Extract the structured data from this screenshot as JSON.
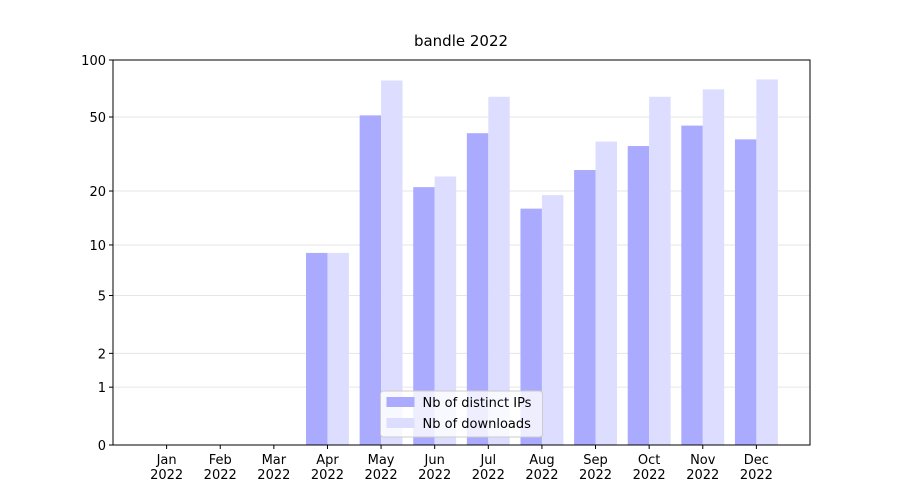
{
  "chart_data": {
    "type": "bar",
    "title": "bandle 2022",
    "scale": "log1p",
    "categories": [
      "Jan\n2022",
      "Feb\n2022",
      "Mar\n2022",
      "Apr\n2022",
      "May\n2022",
      "Jun\n2022",
      "Jul\n2022",
      "Aug\n2022",
      "Sep\n2022",
      "Oct\n2022",
      "Nov\n2022",
      "Dec\n2022"
    ],
    "series": [
      {
        "name": "Nb of distinct IPs",
        "color": "#aaaaff",
        "values": [
          0,
          0,
          0,
          9,
          51,
          21,
          41,
          16,
          26,
          35,
          45,
          38
        ]
      },
      {
        "name": "Nb of downloads",
        "color": "#ddddff",
        "values": [
          0,
          0,
          0,
          9,
          78,
          24,
          64,
          19,
          37,
          64,
          70,
          79
        ]
      }
    ],
    "ylim": [
      0,
      100
    ],
    "yticks": [
      0,
      1,
      2,
      5,
      10,
      20,
      50,
      100
    ],
    "grid": true,
    "legend": "lower center"
  }
}
